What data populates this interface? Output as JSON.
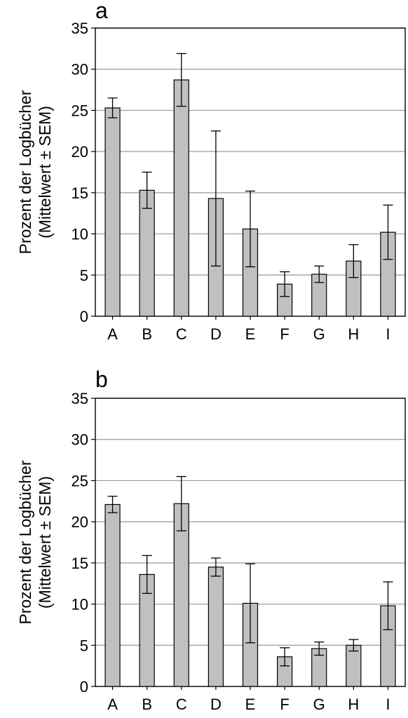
{
  "colors": {
    "bar_fill": "#c0c0c0",
    "bar_stroke": "#000000",
    "grid": "#9a9a9a",
    "axis": "#000000"
  },
  "chart_data": [
    {
      "type": "bar",
      "panel_label": "a",
      "title": "",
      "xlabel": "",
      "ylabel": "Prozent der Logbücher",
      "ylabel_line2": "(Mittelwert ± SEM)",
      "ylim": [
        0,
        35
      ],
      "yticks": [
        0,
        5,
        10,
        15,
        20,
        25,
        30,
        35
      ],
      "grid": true,
      "categories": [
        "A",
        "B",
        "C",
        "D",
        "E",
        "F",
        "G",
        "H",
        "I"
      ],
      "values": [
        25.3,
        15.3,
        28.7,
        14.3,
        10.6,
        3.9,
        5.1,
        6.7,
        10.2
      ],
      "error": [
        1.2,
        2.2,
        3.2,
        8.2,
        4.6,
        1.5,
        1.0,
        2.0,
        3.3
      ]
    },
    {
      "type": "bar",
      "panel_label": "b",
      "title": "",
      "xlabel": "",
      "ylabel": "Prozent der Logbücher",
      "ylabel_line2": "(Mittelwert ± SEM)",
      "ylim": [
        0,
        35
      ],
      "yticks": [
        0,
        5,
        10,
        15,
        20,
        25,
        30,
        35
      ],
      "grid": true,
      "categories": [
        "A",
        "B",
        "C",
        "D",
        "E",
        "F",
        "G",
        "H",
        "I"
      ],
      "values": [
        22.1,
        13.6,
        22.2,
        14.5,
        10.1,
        3.6,
        4.6,
        5.0,
        9.8
      ],
      "error": [
        1.0,
        2.3,
        3.3,
        1.1,
        4.8,
        1.1,
        0.8,
        0.7,
        2.9
      ]
    }
  ]
}
